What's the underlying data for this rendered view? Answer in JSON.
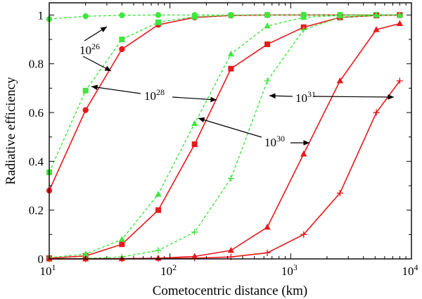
{
  "chart_data": {
    "type": "line",
    "title": "",
    "xlabel": "Cometocentric distance (km)",
    "ylabel": "Radiative efficiency",
    "xscale": "log",
    "xlim": [
      10,
      10000
    ],
    "ylim": [
      0,
      1.05
    ],
    "x_ticks": [
      10,
      100,
      1000,
      10000
    ],
    "x_tick_labels": [
      {
        "base": "10",
        "exp": "1"
      },
      {
        "base": "10",
        "exp": "2"
      },
      {
        "base": "10",
        "exp": "3"
      },
      {
        "base": "10",
        "exp": "4"
      }
    ],
    "y_ticks": [
      0,
      0.2,
      0.4,
      0.6,
      0.8,
      1
    ],
    "y_tick_labels": [
      "0",
      "0.2",
      "0.4",
      "0.6",
      "0.8",
      "1"
    ],
    "grid": false,
    "colors": {
      "red": "#e8191c",
      "green": "#3ee63e",
      "axis": "#000000"
    },
    "series": [
      {
        "color": "#3ee63e",
        "dashed": true,
        "marker": "circle",
        "x": [
          10,
          20,
          40,
          80,
          160,
          320,
          640,
          1280,
          2560,
          5120,
          8000
        ],
        "y": [
          0.983,
          0.995,
          0.999,
          1.0,
          1.0,
          1.0,
          1.0,
          1.0,
          1.0,
          1.0,
          1.0
        ]
      },
      {
        "color": "#e8191c",
        "dashed": false,
        "marker": "circle",
        "x": [
          10,
          20,
          40,
          80,
          160,
          320,
          640,
          1280,
          2560,
          5120,
          8000
        ],
        "y": [
          0.28,
          0.61,
          0.86,
          0.96,
          0.99,
          0.998,
          1.0,
          1.0,
          1.0,
          1.0,
          1.0
        ]
      },
      {
        "color": "#3ee63e",
        "dashed": true,
        "marker": "square",
        "x": [
          10,
          20,
          40,
          80,
          160,
          320,
          640,
          1280,
          2560,
          5120,
          8000
        ],
        "y": [
          0.355,
          0.69,
          0.9,
          0.97,
          0.993,
          0.999,
          1.0,
          1.0,
          1.0,
          1.0,
          1.0
        ]
      },
      {
        "color": "#e8191c",
        "dashed": false,
        "marker": "square",
        "x": [
          10,
          20,
          40,
          80,
          160,
          320,
          640,
          1280,
          2560,
          5120,
          8000
        ],
        "y": [
          0.003,
          0.012,
          0.06,
          0.2,
          0.47,
          0.78,
          0.88,
          0.95,
          0.99,
          0.998,
          1.0
        ]
      },
      {
        "color": "#3ee63e",
        "dashed": true,
        "marker": "triangle",
        "x": [
          10,
          20,
          40,
          80,
          160,
          320,
          640,
          1280,
          2560,
          5120,
          8000
        ],
        "y": [
          0.005,
          0.02,
          0.08,
          0.265,
          0.555,
          0.84,
          0.955,
          0.99,
          0.998,
          1.0,
          1.0
        ]
      },
      {
        "color": "#e8191c",
        "dashed": false,
        "marker": "triangle",
        "x": [
          10,
          20,
          40,
          80,
          160,
          320,
          640,
          1280,
          2560,
          5120,
          8000
        ],
        "y": [
          0.0,
          0.0,
          0.001,
          0.003,
          0.01,
          0.035,
          0.13,
          0.43,
          0.73,
          0.94,
          0.965
        ]
      },
      {
        "color": "#3ee63e",
        "dashed": true,
        "marker": "plus",
        "x": [
          10,
          20,
          40,
          80,
          160,
          320,
          640,
          1280,
          2560,
          5120,
          8000
        ],
        "y": [
          0.0,
          0.002,
          0.008,
          0.035,
          0.11,
          0.33,
          0.73,
          0.94,
          0.99,
          0.998,
          1.0
        ]
      },
      {
        "color": "#e8191c",
        "dashed": false,
        "marker": "plus",
        "x": [
          10,
          20,
          40,
          80,
          160,
          320,
          640,
          1280,
          2560,
          5120,
          8000
        ],
        "y": [
          0.0,
          0.0,
          0.0,
          0.001,
          0.003,
          0.008,
          0.025,
          0.1,
          0.27,
          0.6,
          0.73
        ]
      }
    ],
    "annotations": [
      {
        "base": "10",
        "exp": "26"
      },
      {
        "base": "10",
        "exp": "28"
      },
      {
        "base": "10",
        "exp": "30"
      },
      {
        "base": "10",
        "exp": "31"
      }
    ]
  }
}
